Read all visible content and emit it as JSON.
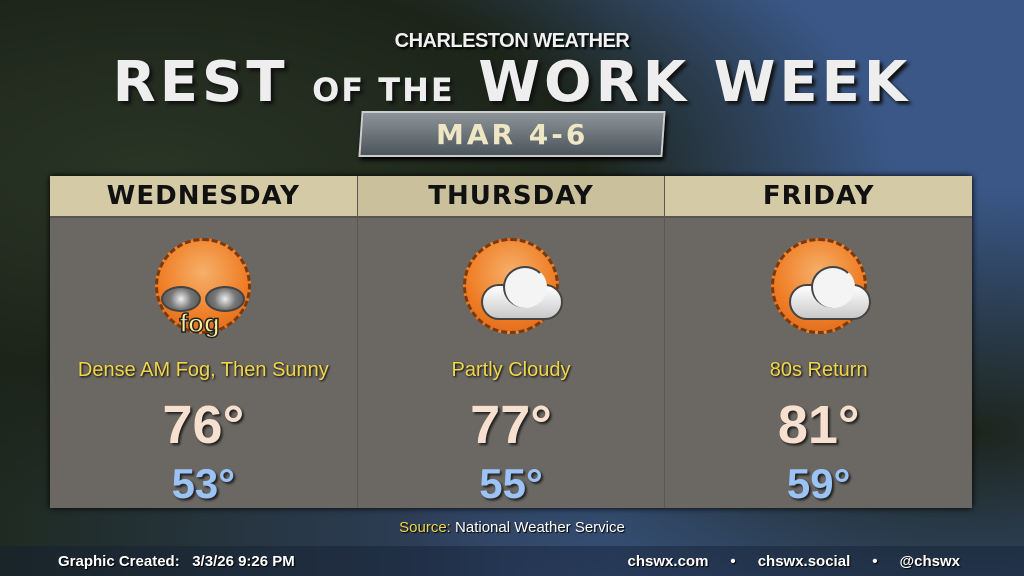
{
  "header": {
    "subtitle": "CHARLESTON WEATHER",
    "title_a": "REST",
    "title_b": "OF THE",
    "title_c": "WORK WEEK",
    "dates": "MAR 4-6"
  },
  "days": [
    {
      "name": "WEDNESDAY",
      "icon": "fog-icon",
      "icon_text": "fog",
      "condition": "Dense AM Fog, Then Sunny",
      "high": "76°",
      "low": "53°"
    },
    {
      "name": "THURSDAY",
      "icon": "partly-cloudy-icon",
      "condition": "Partly Cloudy",
      "high": "77°",
      "low": "55°"
    },
    {
      "name": "FRIDAY",
      "icon": "partly-cloudy-icon",
      "condition": "80s Return",
      "high": "81°",
      "low": "59°"
    }
  ],
  "source": {
    "label": "Source:",
    "value": "National Weather Service"
  },
  "footer": {
    "created_label": "Graphic Created:",
    "created_value": "3/3/26 9:26 PM",
    "links": [
      "chswx.com",
      "•",
      "chswx.social",
      "•",
      "@chswx"
    ]
  },
  "colors": {
    "high": "#f7e0cf",
    "low": "#9cc3f5",
    "condition": "#f1d64a",
    "header_band": "#d4cba6"
  }
}
